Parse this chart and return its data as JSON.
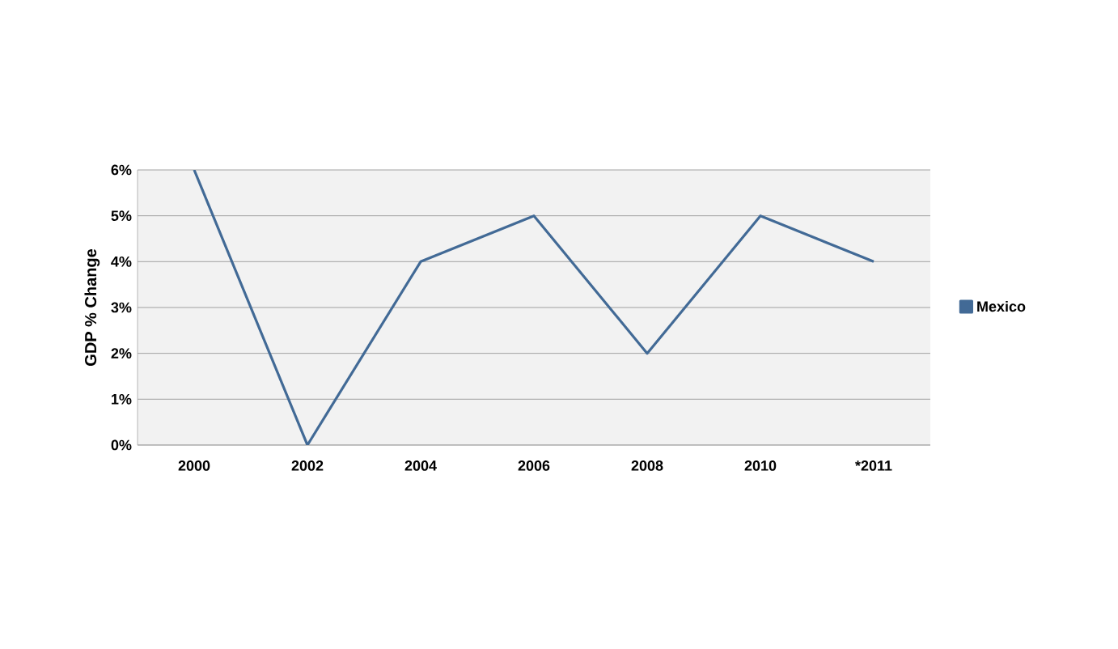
{
  "chart_data": {
    "type": "line",
    "ylabel": "GDP % Change",
    "categories": [
      "2000",
      "2002",
      "2004",
      "2006",
      "2008",
      "2010",
      "*2011"
    ],
    "series": [
      {
        "name": "Mexico",
        "color": "#426a96",
        "values": [
          6,
          0,
          4,
          5,
          2,
          5,
          4
        ]
      }
    ],
    "ylim": [
      0,
      6
    ],
    "yticks": [
      {
        "value": 0,
        "label": "0%"
      },
      {
        "value": 1,
        "label": "1%"
      },
      {
        "value": 2,
        "label": "2%"
      },
      {
        "value": 3,
        "label": "3%"
      },
      {
        "value": 4,
        "label": "4%"
      },
      {
        "value": 5,
        "label": "5%"
      },
      {
        "value": 6,
        "label": "6%"
      }
    ],
    "grid": "y",
    "legend": "right",
    "marker": "none"
  }
}
